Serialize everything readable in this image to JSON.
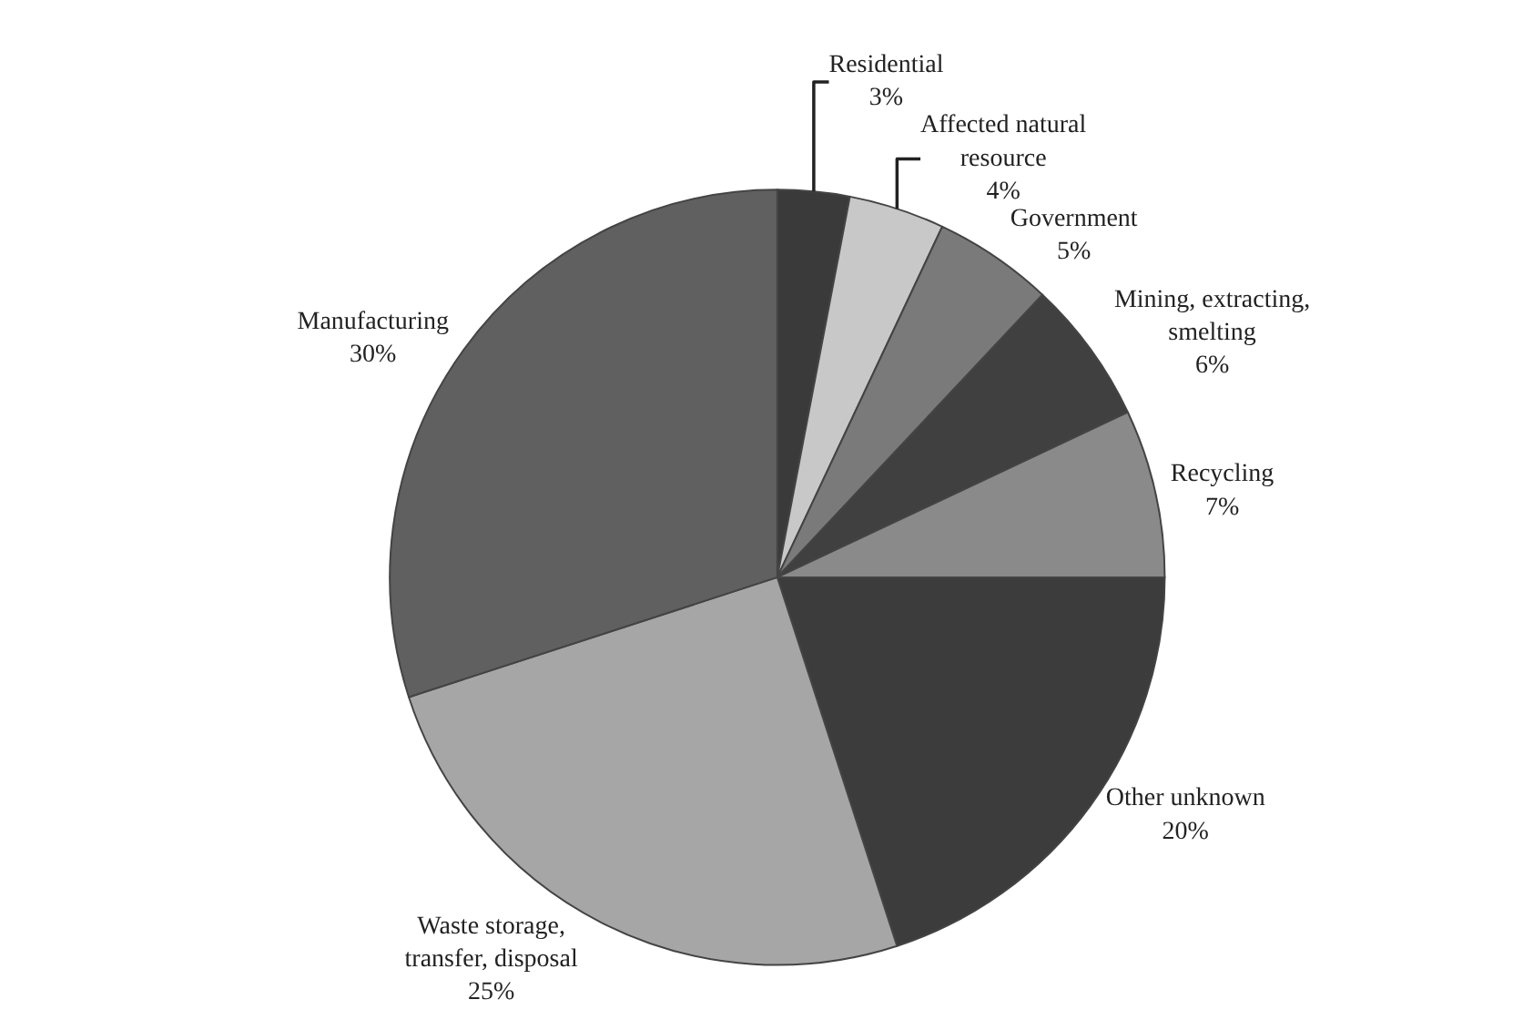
{
  "chart_data": {
    "type": "pie",
    "categories": [
      "Residential",
      "Affected natural resource",
      "Government",
      "Mining, extracting, smelting",
      "Recycling",
      "Other unknown",
      "Waste storage, transfer, disposal",
      "Manufacturing"
    ],
    "values": [
      3,
      4,
      5,
      6,
      7,
      20,
      25,
      30
    ],
    "value_labels": [
      "3%",
      "4%",
      "5%",
      "6%",
      "7%",
      "20%",
      "25%",
      "30%"
    ],
    "colors": [
      "#3a3a3a",
      "#c8c8c8",
      "#7a7a7a",
      "#404040",
      "#8a8a8a",
      "#3c3c3c",
      "#a6a6a6",
      "#606060"
    ],
    "legend": false
  }
}
